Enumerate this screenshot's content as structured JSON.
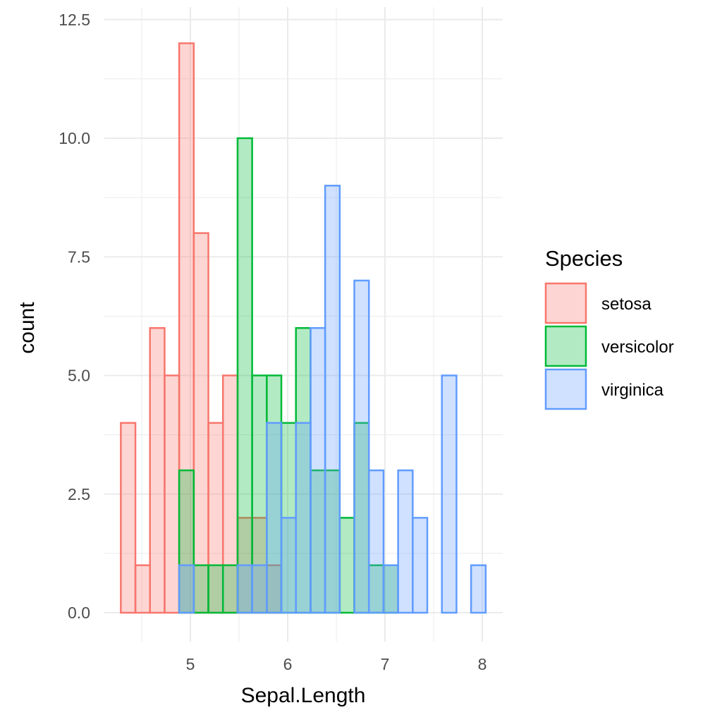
{
  "chart_data": {
    "type": "histogram",
    "title": "",
    "xlabel": "Sepal.Length",
    "ylabel": "count",
    "xlim": [
      4.2,
      8.2
    ],
    "ylim": [
      0,
      12.5
    ],
    "x_ticks": [
      5,
      6,
      7,
      8
    ],
    "x_tick_labels": [
      "5",
      "6",
      "7",
      "8"
    ],
    "y_ticks": [
      0,
      2.5,
      5,
      7.5,
      10,
      12.5
    ],
    "y_tick_labels": [
      "0.0",
      "2.5",
      "5.0",
      "7.5",
      "10.0",
      "12.5"
    ],
    "grid": true,
    "bin_width": 0.15,
    "bin_centers": [
      4.36,
      4.51,
      4.66,
      4.81,
      4.96,
      5.11,
      5.26,
      5.41,
      5.56,
      5.71,
      5.86,
      6.01,
      6.16,
      6.31,
      6.46,
      6.61,
      6.76,
      6.91,
      7.06,
      7.21,
      7.36,
      7.51,
      7.66,
      7.81,
      7.96
    ],
    "legend": {
      "title": "Species",
      "position": "right"
    },
    "series": [
      {
        "name": "setosa",
        "color": "#F8766D",
        "values": [
          4,
          1,
          6,
          5,
          12,
          8,
          4,
          5,
          2,
          2,
          1,
          0,
          0,
          0,
          0,
          0,
          0,
          0,
          0,
          0,
          0,
          0,
          0,
          0,
          0
        ]
      },
      {
        "name": "versicolor",
        "color": "#00BA38",
        "values": [
          0,
          0,
          0,
          0,
          3,
          1,
          1,
          1,
          10,
          5,
          5,
          4,
          6,
          3,
          3,
          2,
          4,
          1,
          1,
          0,
          0,
          0,
          0,
          0,
          0
        ]
      },
      {
        "name": "virginica",
        "color": "#619CFF",
        "values": [
          0,
          0,
          0,
          0,
          1,
          0,
          0,
          0,
          1,
          1,
          4,
          2,
          4,
          6,
          9,
          0,
          7,
          3,
          1,
          3,
          2,
          0,
          5,
          0,
          1
        ]
      }
    ]
  }
}
